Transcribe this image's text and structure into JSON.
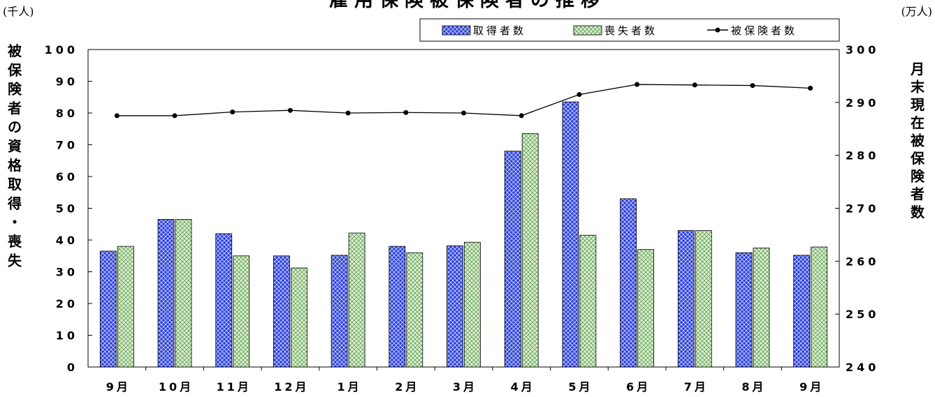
{
  "chart_data": {
    "type": "bar",
    "title": "雇用保険被保険者の推移",
    "unit_left": "(千人)",
    "unit_right": "(万人)",
    "ylabel_left": "被保険者の資格取得・喪失",
    "ylabel_right": "月末現在被保険者数",
    "categories": [
      "9月",
      "10月",
      "11月",
      "12月",
      "1月",
      "2月",
      "3月",
      "4月",
      "5月",
      "6月",
      "7月",
      "8月",
      "9月"
    ],
    "ylim_left": [
      0,
      100
    ],
    "yticks_left": [
      "0",
      "10",
      "20",
      "30",
      "40",
      "50",
      "60",
      "70",
      "80",
      "90",
      "100"
    ],
    "ylim_right": [
      240,
      300
    ],
    "yticks_right": [
      "240",
      "250",
      "260",
      "270",
      "280",
      "290",
      "300"
    ],
    "series": [
      {
        "name": "取得者数",
        "axis": "left",
        "kind": "bar",
        "color": "#2a3bd6",
        "values": [
          36.5,
          46.5,
          42.0,
          35.0,
          35.2,
          38.0,
          38.2,
          68.0,
          83.5,
          53.0,
          43.0,
          36.0,
          35.2
        ]
      },
      {
        "name": "喪失者数",
        "axis": "left",
        "kind": "bar",
        "color": "#cfeec4",
        "values": [
          38.0,
          46.5,
          35.0,
          31.2,
          42.2,
          36.0,
          39.3,
          73.5,
          41.5,
          37.0,
          43.0,
          37.5,
          37.8
        ]
      },
      {
        "name": "被保険者数",
        "axis": "right",
        "kind": "line",
        "color": "#000000",
        "values": [
          287.5,
          287.5,
          288.2,
          288.5,
          288.0,
          288.1,
          288.0,
          287.5,
          291.5,
          293.4,
          293.3,
          293.2,
          292.7
        ]
      }
    ],
    "grid": false,
    "legend_position": "top-right"
  }
}
